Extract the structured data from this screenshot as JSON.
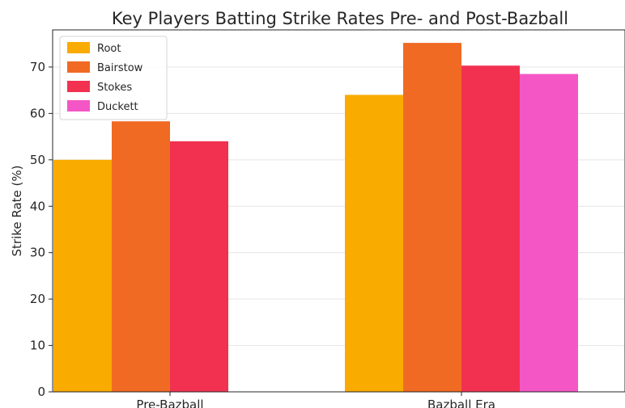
{
  "chart_data": {
    "type": "bar",
    "title": "Key Players Batting Strike Rates Pre- and Post-Bazball",
    "xlabel": "",
    "ylabel": "Strike Rate (%)",
    "categories": [
      "Pre-Bazball",
      "Bazball Era"
    ],
    "series": [
      {
        "name": "Root",
        "color": "#F9AB00",
        "values": [
          50,
          64
        ]
      },
      {
        "name": "Bairstow",
        "color": "#F06A24",
        "values": [
          58.3,
          75.2
        ]
      },
      {
        "name": "Stokes",
        "color": "#F23150",
        "values": [
          54,
          70.3
        ]
      },
      {
        "name": "Duckett",
        "color": "#F456C6",
        "values": [
          null,
          68.5
        ]
      }
    ],
    "ylim": [
      0,
      78
    ],
    "yticks": [
      "0",
      "10",
      "20",
      "30",
      "40",
      "50",
      "60",
      "70"
    ],
    "grid": true,
    "legend_position": "top-left"
  }
}
